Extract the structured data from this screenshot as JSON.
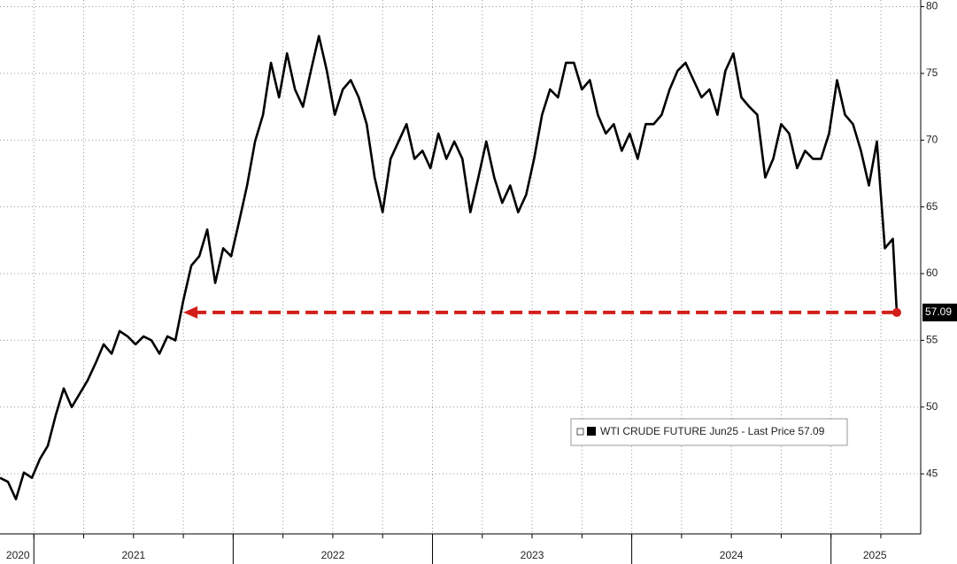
{
  "chart_data": {
    "type": "line",
    "x": [
      2020.83,
      2020.87,
      2020.91,
      2020.95,
      2020.99,
      2021.03,
      2021.07,
      2021.11,
      2021.15,
      2021.19,
      2021.23,
      2021.27,
      2021.31,
      2021.35,
      2021.39,
      2021.43,
      2021.47,
      2021.51,
      2021.55,
      2021.59,
      2021.63,
      2021.67,
      2021.71,
      2021.75,
      2021.79,
      2021.83,
      2021.87,
      2021.91,
      2021.95,
      2021.99,
      2022.03,
      2022.07,
      2022.11,
      2022.15,
      2022.19,
      2022.23,
      2022.27,
      2022.31,
      2022.35,
      2022.39,
      2022.43,
      2022.47,
      2022.51,
      2022.55,
      2022.59,
      2022.63,
      2022.67,
      2022.71,
      2022.75,
      2022.79,
      2022.83,
      2022.87,
      2022.91,
      2022.95,
      2022.99,
      2023.03,
      2023.07,
      2023.11,
      2023.15,
      2023.19,
      2023.23,
      2023.27,
      2023.31,
      2023.35,
      2023.39,
      2023.43,
      2023.47,
      2023.51,
      2023.55,
      2023.59,
      2023.63,
      2023.67,
      2023.71,
      2023.75,
      2023.79,
      2023.83,
      2023.87,
      2023.91,
      2023.95,
      2023.99,
      2024.03,
      2024.07,
      2024.11,
      2024.15,
      2024.19,
      2024.23,
      2024.27,
      2024.31,
      2024.35,
      2024.39,
      2024.43,
      2024.47,
      2024.51,
      2024.55,
      2024.59,
      2024.63,
      2024.67,
      2024.71,
      2024.75,
      2024.79,
      2024.83,
      2024.87,
      2024.91,
      2024.95,
      2024.99,
      2025.03,
      2025.07,
      2025.11,
      2025.15,
      2025.19,
      2025.23,
      2025.27,
      2025.31,
      2025.33
    ],
    "series": [
      {
        "name": "WTI CRUDE FUTURE Jun25 - Last Price 57.09",
        "color": "#000000",
        "values": [
          44.7,
          44.4,
          43.1,
          45.1,
          44.7,
          46.1,
          47.1,
          49.4,
          51.4,
          50.0,
          51.0,
          52.0,
          53.3,
          54.7,
          54.0,
          55.7,
          55.3,
          54.7,
          55.3,
          55.0,
          54.0,
          55.3,
          55.0,
          58.0,
          60.6,
          61.3,
          63.3,
          59.3,
          61.9,
          61.3,
          63.9,
          66.6,
          69.9,
          71.9,
          75.8,
          73.2,
          76.5,
          73.8,
          72.5,
          75.2,
          77.8,
          75.2,
          71.9,
          73.8,
          74.5,
          73.2,
          71.2,
          67.2,
          64.6,
          68.6,
          69.9,
          71.2,
          68.6,
          69.2,
          67.9,
          70.5,
          68.6,
          69.9,
          68.6,
          64.6,
          67.2,
          69.9,
          67.2,
          65.3,
          66.6,
          64.6,
          65.9,
          68.6,
          71.9,
          73.8,
          73.2,
          75.8,
          75.8,
          73.8,
          74.5,
          71.9,
          70.5,
          71.2,
          69.2,
          70.5,
          68.6,
          71.2,
          71.2,
          71.9,
          73.8,
          75.2,
          75.8,
          74.5,
          73.2,
          73.8,
          71.9,
          75.2,
          76.5,
          73.2,
          72.5,
          71.9,
          67.2,
          68.6,
          71.2,
          70.5,
          67.9,
          69.2,
          68.6,
          68.6,
          70.5,
          74.5,
          71.9,
          71.2,
          69.2,
          66.6,
          69.9,
          61.9,
          62.6,
          57.09
        ]
      }
    ],
    "xlim": [
      2020.83,
      2025.45
    ],
    "ylim": [
      40.5,
      80.5
    ],
    "yticks": [
      45,
      50,
      55,
      60,
      65,
      70,
      75,
      80
    ],
    "xticks": [
      {
        "value": 2020.92,
        "label": "2020"
      },
      {
        "value": 2021.5,
        "label": "2021"
      },
      {
        "value": 2022.5,
        "label": "2022"
      },
      {
        "value": 2023.5,
        "label": "2023"
      },
      {
        "value": 2024.5,
        "label": "2024"
      },
      {
        "value": 2025.22,
        "label": "2025"
      }
    ],
    "year_boundaries": [
      2021,
      2022,
      2023,
      2024,
      2025
    ],
    "xgrid": [
      2021,
      2021.25,
      2021.5,
      2021.75,
      2022,
      2022.25,
      2022.5,
      2022.75,
      2023,
      2023.25,
      2023.5,
      2023.75,
      2024,
      2024.25,
      2024.5,
      2024.75,
      2025,
      2025.25
    ],
    "grid": true,
    "annotation_color": "#d21f1b"
  }
}
